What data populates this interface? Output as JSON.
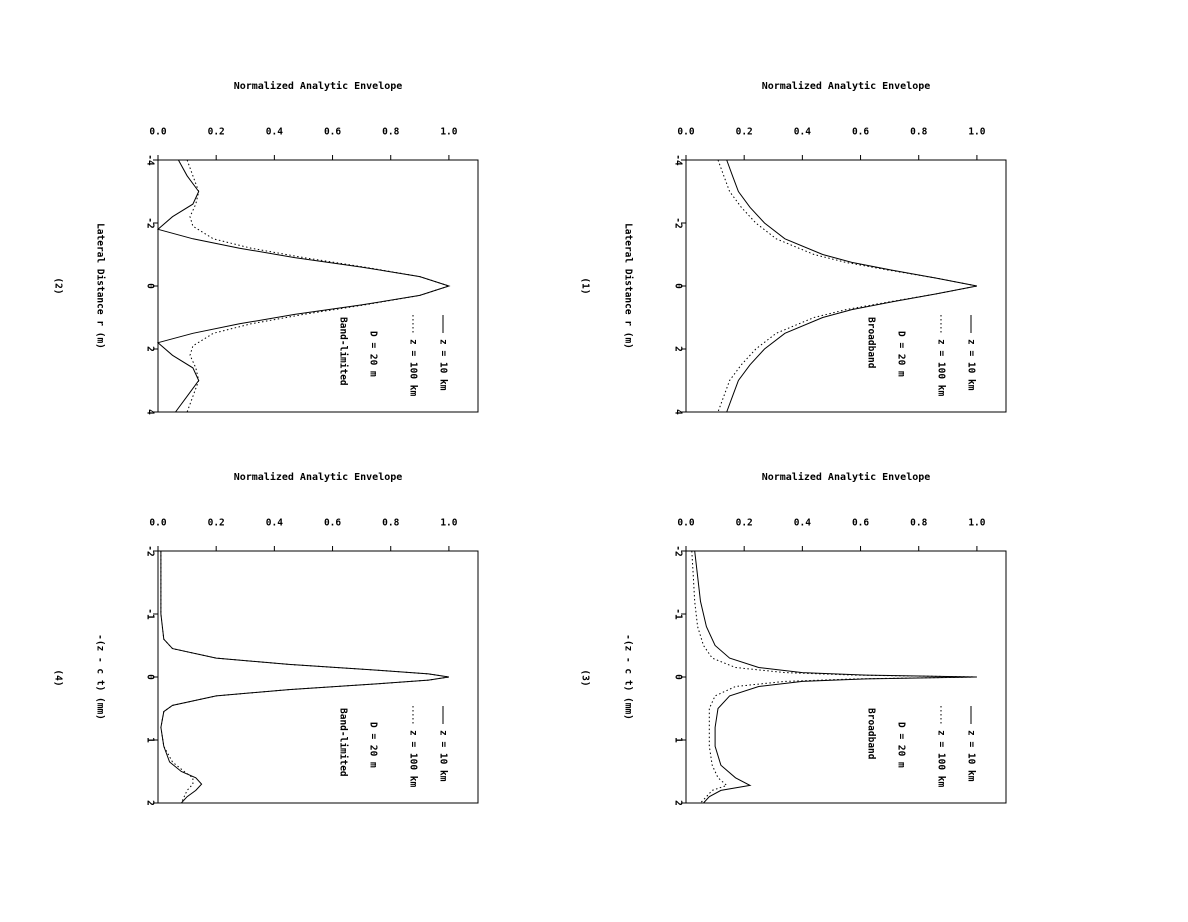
{
  "chart_data": [
    {
      "type": "line",
      "panel_label": "(1)",
      "title": "Normalized Analytic Envelope",
      "xlabel": "Normalized Analytic Envelope",
      "ylabel": "Lateral Distance r (m)",
      "x_ticks": [
        "0.0",
        "0.2",
        "0.4",
        "0.6",
        "0.8",
        "1.0"
      ],
      "y_ticks": [
        "-4",
        "-2",
        "0",
        "2",
        "4"
      ],
      "xlim": [
        0,
        1.1
      ],
      "ylim": [
        -4,
        4
      ],
      "legend": [
        "z = 10 km",
        "z = 100 km",
        "D = 20 m",
        "Broadband"
      ],
      "series": [
        {
          "name": "z = 10 km",
          "style": "solid",
          "r": [
            -4,
            -3.5,
            -3,
            -2.5,
            -2,
            -1.5,
            -1,
            -0.75,
            -0.5,
            -0.25,
            0,
            0.25,
            0.5,
            0.75,
            1,
            1.5,
            2,
            2.5,
            3,
            3.5,
            4
          ],
          "env": [
            0.14,
            0.16,
            0.18,
            0.22,
            0.27,
            0.34,
            0.47,
            0.57,
            0.71,
            0.86,
            1.0,
            0.86,
            0.71,
            0.57,
            0.47,
            0.34,
            0.27,
            0.22,
            0.18,
            0.16,
            0.14
          ]
        },
        {
          "name": "z = 100 km",
          "style": "dotted",
          "r": [
            -4,
            -3.5,
            -3,
            -2.5,
            -2,
            -1.5,
            -1,
            -0.75,
            -0.5,
            -0.25,
            0,
            0.25,
            0.5,
            0.75,
            1,
            1.5,
            2,
            2.5,
            3,
            3.5,
            4
          ],
          "env": [
            0.11,
            0.13,
            0.15,
            0.19,
            0.24,
            0.31,
            0.44,
            0.55,
            0.7,
            0.86,
            1.0,
            0.86,
            0.7,
            0.55,
            0.44,
            0.31,
            0.24,
            0.19,
            0.15,
            0.13,
            0.11
          ]
        }
      ]
    },
    {
      "type": "line",
      "panel_label": "(2)",
      "title": "Normalized Analytic Envelope",
      "xlabel": "Normalized Analytic Envelope",
      "ylabel": "Lateral Distance r (m)",
      "x_ticks": [
        "0.0",
        "0.2",
        "0.4",
        "0.6",
        "0.8",
        "1.0"
      ],
      "y_ticks": [
        "-4",
        "-2",
        "0",
        "2",
        "4"
      ],
      "xlim": [
        0,
        1.1
      ],
      "ylim": [
        -4,
        4
      ],
      "legend": [
        "z = 10 km",
        "z = 100 km",
        "D = 20 m",
        "Band-limited"
      ],
      "series": [
        {
          "name": "z = 10 km",
          "style": "solid",
          "r": [
            -4,
            -3.5,
            -3,
            -2.6,
            -2.2,
            -1.8,
            -1.5,
            -1.2,
            -0.9,
            -0.6,
            -0.3,
            0,
            0.3,
            0.6,
            0.9,
            1.2,
            1.5,
            1.8,
            2.2,
            2.6,
            3,
            3.5,
            4
          ],
          "env": [
            0.07,
            0.1,
            0.14,
            0.12,
            0.05,
            0.0,
            0.12,
            0.28,
            0.47,
            0.7,
            0.9,
            1.0,
            0.9,
            0.7,
            0.47,
            0.28,
            0.12,
            0.0,
            0.05,
            0.12,
            0.14,
            0.1,
            0.06
          ]
        },
        {
          "name": "z = 100 km",
          "style": "dotted",
          "r": [
            -4,
            -3.5,
            -3,
            -2.6,
            -2.2,
            -1.9,
            -1.5,
            -1.2,
            -0.9,
            -0.6,
            -0.3,
            0,
            0.3,
            0.6,
            0.9,
            1.2,
            1.5,
            1.9,
            2.2,
            2.6,
            3,
            3.5,
            4
          ],
          "env": [
            0.1,
            0.12,
            0.14,
            0.13,
            0.11,
            0.12,
            0.19,
            0.32,
            0.5,
            0.71,
            0.9,
            1.0,
            0.9,
            0.71,
            0.5,
            0.32,
            0.19,
            0.12,
            0.11,
            0.13,
            0.14,
            0.12,
            0.1
          ]
        }
      ]
    },
    {
      "type": "line",
      "panel_label": "(3)",
      "title": "Normalized Analytic Envelope",
      "xlabel": "Normalized Analytic Envelope",
      "ylabel": "-(z - c t) (mm)",
      "x_ticks": [
        "0.0",
        "0.2",
        "0.4",
        "0.6",
        "0.8",
        "1.0"
      ],
      "y_ticks": [
        "-2",
        "-1",
        "0",
        "1",
        "2"
      ],
      "xlim": [
        0,
        1.1
      ],
      "ylim": [
        -2,
        2
      ],
      "legend": [
        "z = 10 km",
        "z = 100 km",
        "D = 20 m",
        "Broadband"
      ],
      "series": [
        {
          "name": "z = 10 km",
          "style": "solid",
          "r": [
            -2,
            -1.6,
            -1.2,
            -0.8,
            -0.5,
            -0.3,
            -0.15,
            -0.07,
            -0.03,
            0,
            0.03,
            0.07,
            0.15,
            0.3,
            0.5,
            0.8,
            1.1,
            1.4,
            1.6,
            1.72,
            1.8,
            1.9,
            2
          ],
          "env": [
            0.03,
            0.04,
            0.05,
            0.07,
            0.1,
            0.15,
            0.25,
            0.4,
            0.62,
            1.0,
            0.62,
            0.4,
            0.25,
            0.15,
            0.11,
            0.1,
            0.1,
            0.12,
            0.17,
            0.22,
            0.12,
            0.08,
            0.06
          ]
        },
        {
          "name": "z = 100 km",
          "style": "dotted",
          "r": [
            -2,
            -1.6,
            -1.2,
            -0.8,
            -0.5,
            -0.3,
            -0.15,
            -0.07,
            -0.03,
            0,
            0.03,
            0.07,
            0.15,
            0.3,
            0.5,
            0.8,
            1.1,
            1.4,
            1.6,
            1.72,
            1.8,
            1.9,
            2
          ],
          "env": [
            0.02,
            0.025,
            0.03,
            0.04,
            0.06,
            0.09,
            0.17,
            0.34,
            0.58,
            1.0,
            0.58,
            0.34,
            0.17,
            0.1,
            0.08,
            0.08,
            0.08,
            0.09,
            0.11,
            0.14,
            0.09,
            0.07,
            0.05
          ]
        }
      ]
    },
    {
      "type": "line",
      "panel_label": "(4)",
      "title": "Normalized Analytic Envelope",
      "xlabel": "Normalized Analytic Envelope",
      "ylabel": "-(z - c t) (mm)",
      "x_ticks": [
        "0.0",
        "0.2",
        "0.4",
        "0.6",
        "0.8",
        "1.0"
      ],
      "y_ticks": [
        "-2",
        "-1",
        "0",
        "1",
        "2"
      ],
      "xlim": [
        0,
        1.1
      ],
      "ylim": [
        -2,
        2
      ],
      "legend": [
        "z = 10 km",
        "z = 100 km",
        "D = 20 m",
        "Band-limited"
      ],
      "series": [
        {
          "name": "z = 10 km",
          "style": "solid",
          "r": [
            -2,
            -1.5,
            -1,
            -0.6,
            -0.45,
            -0.3,
            -0.2,
            -0.1,
            -0.05,
            0,
            0.05,
            0.1,
            0.2,
            0.3,
            0.45,
            0.55,
            0.8,
            1.1,
            1.35,
            1.5,
            1.6,
            1.7,
            1.8,
            1.9,
            2
          ],
          "env": [
            0.01,
            0.01,
            0.01,
            0.02,
            0.05,
            0.2,
            0.45,
            0.78,
            0.93,
            1.0,
            0.93,
            0.78,
            0.45,
            0.2,
            0.05,
            0.02,
            0.01,
            0.02,
            0.04,
            0.08,
            0.13,
            0.15,
            0.13,
            0.1,
            0.08
          ]
        },
        {
          "name": "z = 100 km",
          "style": "dotted",
          "r": [
            -2,
            -1.5,
            -1,
            -0.6,
            -0.45,
            -0.3,
            -0.2,
            -0.1,
            -0.05,
            0,
            0.05,
            0.1,
            0.2,
            0.3,
            0.45,
            0.55,
            0.8,
            1.1,
            1.35,
            1.5,
            1.6,
            1.7,
            1.8,
            1.9,
            2
          ],
          "env": [
            0.01,
            0.01,
            0.01,
            0.02,
            0.05,
            0.2,
            0.45,
            0.78,
            0.93,
            1.0,
            0.93,
            0.78,
            0.45,
            0.2,
            0.05,
            0.02,
            0.01,
            0.02,
            0.05,
            0.09,
            0.12,
            0.12,
            0.1,
            0.09,
            0.08
          ]
        }
      ]
    }
  ]
}
